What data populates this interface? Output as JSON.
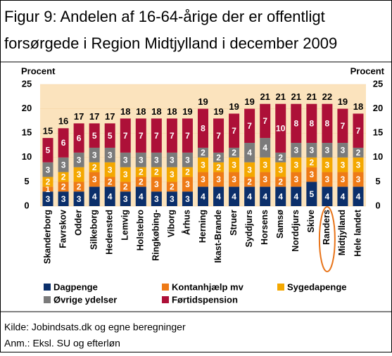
{
  "chart_data": {
    "type": "stacked_bar",
    "title": [
      "Figur 9: Andelen af 16-64-årige der er offentligt",
      "forsørgede i Region Midtjylland i december 2009"
    ],
    "y_label": "Procent",
    "y2_label": "Procent",
    "categories": [
      "Skanderborg",
      "Favrskov",
      "Odder",
      "Silkeborg",
      "Hedensted",
      "Lemvig",
      "Holstebro",
      "Ringkøbing-",
      "Viborg",
      "Århus",
      "Herning",
      "Ikast-Brande",
      "Struer",
      "Syddjurs",
      "Horsens",
      "Samsø",
      "Norddjurs",
      "Skive",
      "Randers",
      "Midtjylland",
      "Hele landet"
    ],
    "series": [
      {
        "name": "Dagpenge",
        "color": "#0b2f6b",
        "values": [
          3,
          3,
          3,
          4,
          4,
          3,
          4,
          3,
          3,
          3,
          4,
          4,
          4,
          4,
          4,
          4,
          4,
          5,
          4,
          4,
          4
        ]
      },
      {
        "name": "Kontanhjælp mv",
        "color": "#ee7a16",
        "values": [
          1,
          2,
          2,
          3,
          2,
          2,
          2,
          3,
          2,
          3,
          3,
          3,
          3,
          2,
          3,
          2,
          3,
          3,
          3,
          3,
          3
        ]
      },
      {
        "name": "Sygedapenge",
        "color": "#f4a800",
        "values": [
          2,
          2,
          3,
          2,
          3,
          3,
          2,
          2,
          3,
          2,
          3,
          2,
          3,
          3,
          3,
          3,
          3,
          2,
          3,
          3,
          3
        ]
      },
      {
        "name": "Øvrige ydelser",
        "color": "#7b7b7b",
        "values": [
          3,
          3,
          3,
          3,
          3,
          3,
          3,
          3,
          3,
          3,
          2,
          2,
          2,
          4,
          4,
          2,
          3,
          3,
          3,
          3,
          2
        ]
      },
      {
        "name": "Førtidspension",
        "color": "#ad1038",
        "values": [
          5,
          6,
          6,
          5,
          5,
          7,
          7,
          7,
          7,
          7,
          8,
          7,
          7,
          7,
          7,
          10,
          8,
          8,
          8,
          7,
          7
        ]
      }
    ],
    "totals": [
      15,
      16,
      17,
      17,
      17,
      18,
      18,
      18,
      18,
      19,
      19,
      19,
      19,
      19,
      21,
      21,
      21,
      21,
      22,
      19,
      18
    ],
    "ylim": [
      0,
      25
    ],
    "yticks": [
      0,
      5,
      10,
      15,
      20,
      25
    ],
    "notes": [
      "Kilde: Jobindsats.dk og egne beregninger",
      "Anm.: Eksl. SU og efterløn"
    ]
  }
}
